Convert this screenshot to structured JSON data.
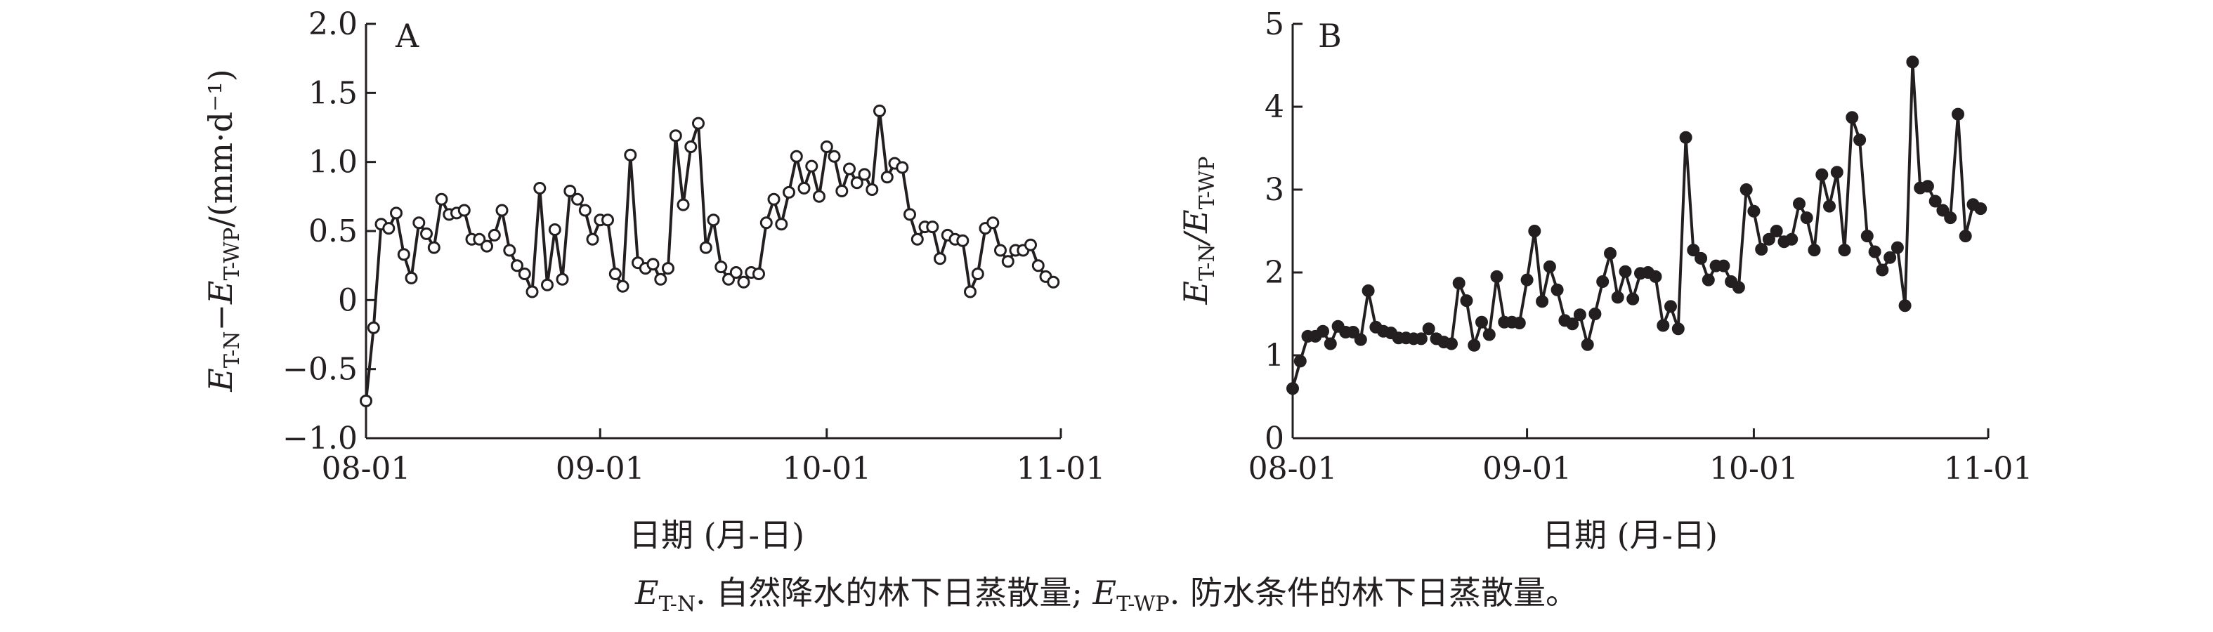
{
  "chart_data": [
    {
      "type": "line",
      "panel_label": "A",
      "markers": "open-circle",
      "xlabel": "日期 (月-日)",
      "ylabel": {
        "prefix": "E",
        "sub1": "T-N",
        "mid": "−E",
        "sub2": "T-WP",
        "unit": "/(mm·d⁻¹)"
      },
      "xlim": [
        "08-01",
        "11-01"
      ],
      "xticks": [
        "08-01",
        "09-01",
        "10-01",
        "11-01"
      ],
      "ylim": [
        -1.0,
        2.0
      ],
      "yticks": [
        "2.0",
        "1.5",
        "1.0",
        "0.5",
        "0",
        "−0.5",
        "−1.0"
      ],
      "x_start": "08-01",
      "series": [
        {
          "values": [
            -0.73,
            -0.2,
            0.55,
            0.52,
            0.63,
            0.33,
            0.16,
            0.56,
            0.48,
            0.38,
            0.73,
            0.62,
            0.63,
            0.65,
            0.44,
            0.44,
            0.39,
            0.47,
            0.65,
            0.36,
            0.25,
            0.19,
            0.06,
            0.81,
            0.11,
            0.51,
            0.15,
            0.79,
            0.73,
            0.65,
            0.44,
            0.58,
            0.58,
            0.19,
            0.1,
            1.05,
            0.27,
            0.23,
            0.26,
            0.15,
            0.23,
            1.19,
            0.69,
            1.11,
            1.28,
            0.38,
            0.58,
            0.24,
            0.15,
            0.2,
            0.13,
            0.2,
            0.19,
            0.56,
            0.73,
            0.55,
            0.78,
            1.04,
            0.81,
            0.97,
            0.75,
            1.11,
            1.04,
            0.79,
            0.95,
            0.85,
            0.91,
            0.8,
            1.37,
            0.89,
            0.99,
            0.96,
            0.62,
            0.44,
            0.53,
            0.53,
            0.3,
            0.47,
            0.44,
            0.43,
            0.06,
            0.19,
            0.52,
            0.56,
            0.36,
            0.28,
            0.36,
            0.36,
            0.4,
            0.25,
            0.17,
            0.13
          ]
        }
      ]
    },
    {
      "type": "line",
      "panel_label": "B",
      "markers": "filled-circle",
      "xlabel": "日期 (月-日)",
      "ylabel": {
        "prefix": "E",
        "sub1": "T-N",
        "mid": "/E",
        "sub2": "T-WP",
        "unit": ""
      },
      "xlim": [
        "08-01",
        "11-01"
      ],
      "xticks": [
        "08-01",
        "09-01",
        "10-01",
        "11-01"
      ],
      "ylim": [
        0,
        5
      ],
      "yticks": [
        "5",
        "4",
        "3",
        "2",
        "1",
        "0"
      ],
      "x_start": "08-01",
      "series": [
        {
          "values": [
            0.6,
            0.93,
            1.23,
            1.23,
            1.29,
            1.14,
            1.35,
            1.28,
            1.28,
            1.19,
            1.78,
            1.34,
            1.29,
            1.27,
            1.21,
            1.21,
            1.2,
            1.2,
            1.32,
            1.2,
            1.16,
            1.14,
            1.87,
            1.66,
            1.12,
            1.4,
            1.25,
            1.95,
            1.4,
            1.4,
            1.39,
            1.91,
            2.5,
            1.65,
            2.07,
            1.79,
            1.42,
            1.38,
            1.49,
            1.13,
            1.5,
            1.89,
            2.23,
            1.7,
            2.01,
            1.68,
            1.99,
            2.0,
            1.95,
            1.36,
            1.59,
            1.32,
            3.63,
            2.27,
            2.17,
            1.91,
            2.08,
            2.08,
            1.89,
            1.82,
            3.0,
            2.74,
            2.28,
            2.4,
            2.5,
            2.37,
            2.4,
            2.83,
            2.66,
            2.27,
            3.18,
            2.8,
            3.21,
            2.27,
            3.87,
            3.6,
            2.44,
            2.25,
            2.03,
            2.18,
            2.3,
            1.6,
            4.54,
            3.02,
            3.04,
            2.86,
            2.75,
            2.66,
            3.91,
            2.44,
            2.82,
            2.77
          ]
        }
      ]
    }
  ],
  "caption": {
    "e1": "E",
    "sub1": "T-N",
    "text1": ". 自然降水的林下日蒸散量; ",
    "e2": "E",
    "sub2": "T-WP",
    "text2": ". 防水条件的林下日蒸散量。"
  }
}
